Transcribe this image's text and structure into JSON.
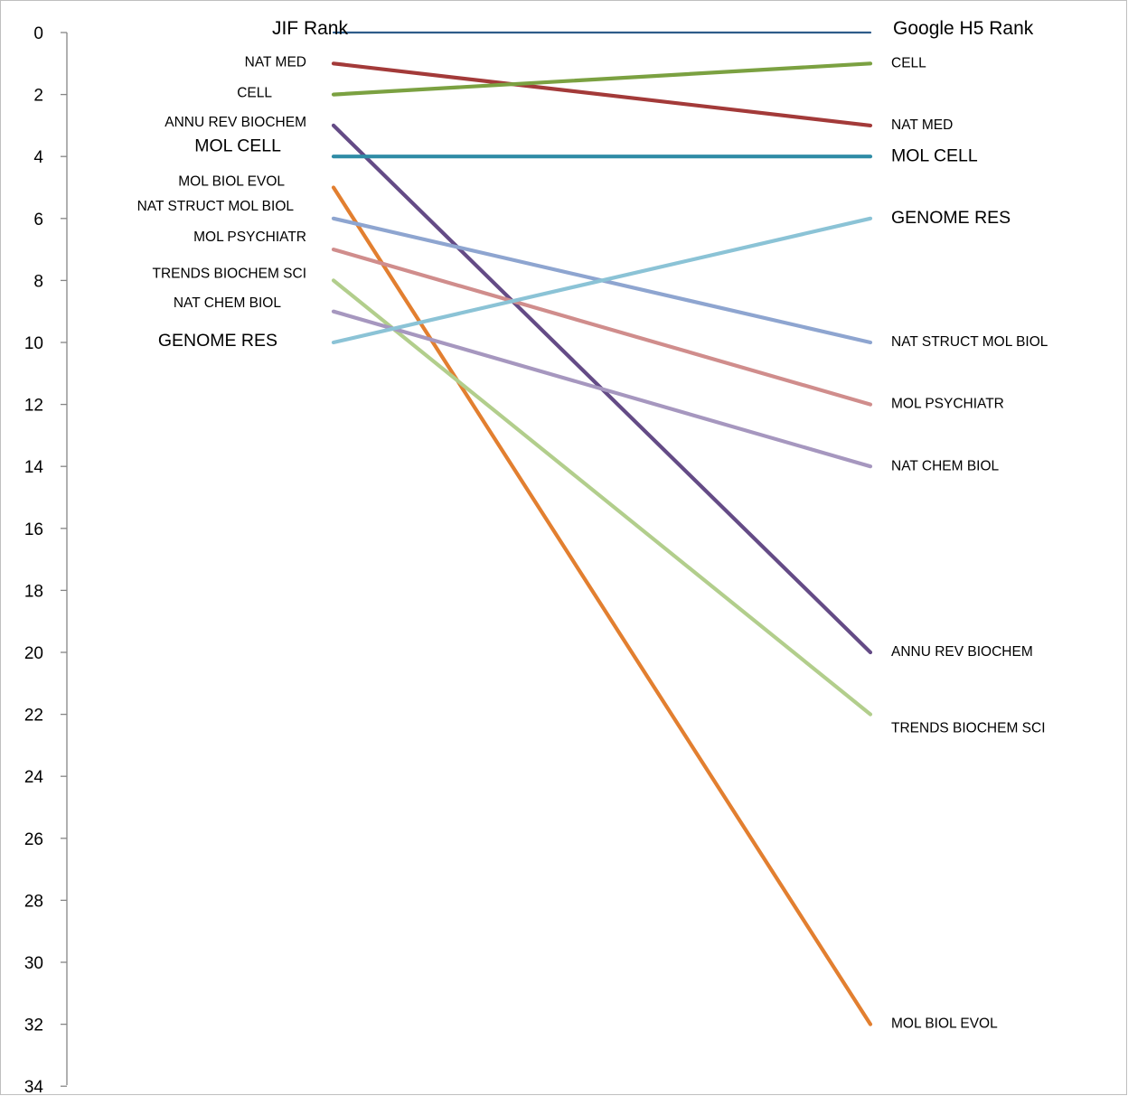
{
  "chart_data": {
    "type": "line",
    "title": "",
    "x": [
      "JIF Rank",
      "Google H5 Rank"
    ],
    "ylim": [
      0,
      34
    ],
    "yticks": [
      0,
      2,
      4,
      6,
      8,
      10,
      12,
      14,
      16,
      18,
      20,
      22,
      24,
      26,
      28,
      30,
      32,
      34
    ],
    "y_axis_inverted": true,
    "grid": false,
    "legend": "none",
    "series": [
      {
        "name": "JIF Rank / Google H5 Rank",
        "values": [
          0,
          0
        ],
        "color": "#2e5c8a",
        "labels": [
          "JIF Rank",
          "Google H5 Rank"
        ],
        "label_size": "large"
      },
      {
        "name": "NAT MED",
        "values": [
          1,
          3
        ],
        "color": "#a33a39",
        "labels": [
          "NAT MED",
          "NAT MED"
        ],
        "label_size": "small"
      },
      {
        "name": "CELL",
        "values": [
          2,
          1
        ],
        "color": "#7ba141",
        "labels": [
          "CELL",
          "CELL"
        ],
        "label_size": "small"
      },
      {
        "name": "ANNU REV BIOCHEM",
        "values": [
          3,
          20
        ],
        "color": "#644b86",
        "labels": [
          "ANNU REV BIOCHEM",
          "ANNU REV BIOCHEM"
        ],
        "label_size": "small"
      },
      {
        "name": "MOL CELL",
        "values": [
          4,
          4
        ],
        "color": "#2f8ca6",
        "labels": [
          "MOL CELL",
          "MOL CELL"
        ],
        "label_size": "large"
      },
      {
        "name": "MOL BIOL EVOL",
        "values": [
          5,
          32
        ],
        "color": "#e27f30",
        "labels": [
          "MOL BIOL EVOL",
          "MOL BIOL EVOL"
        ],
        "label_size": "small"
      },
      {
        "name": "NAT STRUCT MOL BIOL",
        "values": [
          6,
          10
        ],
        "color": "#8ea5d0",
        "labels": [
          "NAT STRUCT MOL BIOL",
          "NAT STRUCT MOL BIOL"
        ],
        "label_size": "small"
      },
      {
        "name": "MOL PSYCHIATR",
        "values": [
          7,
          12
        ],
        "color": "#d08d8c",
        "labels": [
          "MOL PSYCHIATR",
          "MOL PSYCHIATR"
        ],
        "label_size": "small"
      },
      {
        "name": "TRENDS BIOCHEM SCI",
        "values": [
          8,
          22
        ],
        "color": "#b2ce8c",
        "labels": [
          "TRENDS BIOCHEM SCI",
          "TRENDS BIOCHEM SCI"
        ],
        "label_size": "small"
      },
      {
        "name": "NAT CHEM BIOL",
        "values": [
          9,
          14
        ],
        "color": "#a697bf",
        "labels": [
          "NAT CHEM BIOL",
          "NAT CHEM BIOL"
        ],
        "label_size": "small"
      },
      {
        "name": "GENOME RES",
        "values": [
          10,
          6
        ],
        "color": "#8bc3d6",
        "labels": [
          "GENOME RES",
          "GENOME RES"
        ],
        "label_size": "large"
      }
    ]
  }
}
